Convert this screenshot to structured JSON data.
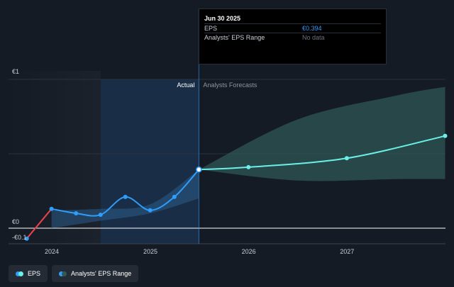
{
  "chart_data": {
    "type": "line",
    "y_tick_labels": [
      "€1",
      "€0",
      "-€0.1"
    ],
    "x_tick_labels": [
      "2024",
      "2025",
      "2026",
      "2027"
    ],
    "region_labels": {
      "actual": "Actual",
      "forecast": "Analysts Forecasts"
    },
    "ylim": [
      -0.1,
      1
    ],
    "series": [
      {
        "name": "EPS",
        "color": "#2e9dfb",
        "points": [
          {
            "x": "2023-09-30",
            "y": -0.07
          },
          {
            "x": "2023-12-31",
            "y": 0.13
          },
          {
            "x": "2024-03-31",
            "y": 0.1
          },
          {
            "x": "2024-06-30",
            "y": 0.09
          },
          {
            "x": "2024-09-30",
            "y": 0.21
          },
          {
            "x": "2024-12-31",
            "y": 0.12
          },
          {
            "x": "2025-03-31",
            "y": 0.21
          },
          {
            "x": "2025-06-30",
            "y": 0.394
          }
        ]
      },
      {
        "name": "EPS Forecast",
        "color": "#6af0e8",
        "points": [
          {
            "x": "2025-06-30",
            "y": 0.394
          },
          {
            "x": "2025-12-31",
            "y": 0.41
          },
          {
            "x": "2026-12-31",
            "y": 0.47
          },
          {
            "x": "2027-12-31",
            "y": 0.62
          }
        ]
      }
    ],
    "range": {
      "name": "Analysts' EPS Range",
      "color": "#2f5a58",
      "points": [
        {
          "x": "2025-06-30",
          "low": 0.394,
          "high": 0.394
        },
        {
          "x": "2026-06-30",
          "low": 0.32,
          "high": 0.73
        },
        {
          "x": "2027-06-30",
          "low": 0.33,
          "high": 0.89
        },
        {
          "x": "2027-12-31",
          "low": 0.33,
          "high": 0.95
        }
      ]
    },
    "actual_range": [
      {
        "x": "2023-12-31",
        "low": 0.0,
        "high": 0.12
      },
      {
        "x": "2024-06-30",
        "low": 0.05,
        "high": 0.13
      },
      {
        "x": "2024-12-31",
        "low": 0.1,
        "high": 0.16
      },
      {
        "x": "2025-06-30",
        "low": 0.2,
        "high": 0.394
      }
    ]
  },
  "tooltip": {
    "date": "Jun 30 2025",
    "rows": [
      {
        "label": "EPS",
        "value": "€0.394"
      },
      {
        "label": "Analysts' EPS Range",
        "value": "No data"
      }
    ]
  },
  "legend": [
    {
      "label": "EPS",
      "colors": [
        "#2e9dfb",
        "#6af0e8"
      ]
    },
    {
      "label": "Analysts' EPS Range",
      "colors": [
        "#2e9dfb",
        "#2f5a58"
      ]
    }
  ]
}
